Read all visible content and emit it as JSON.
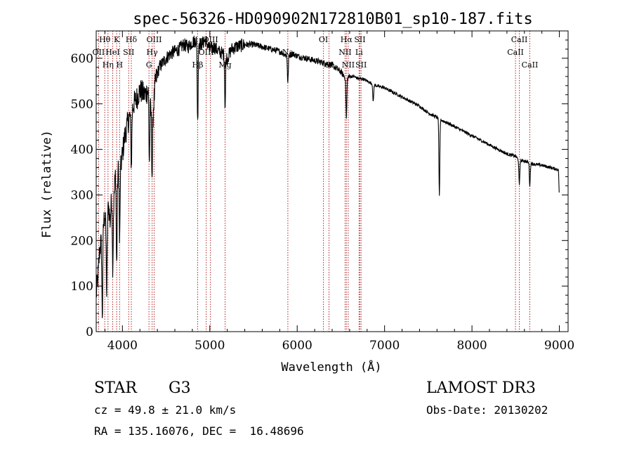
{
  "chart_data": {
    "type": "line",
    "title": "spec-56326-HD090902N172810B01_sp10-187.fits",
    "xlabel": "Wavelength (Å)",
    "ylabel": "Flux (relative)",
    "xlim": [
      3700,
      9100
    ],
    "ylim": [
      0,
      660
    ],
    "x_ticks": [
      4000,
      5000,
      6000,
      7000,
      8000,
      9000
    ],
    "y_ticks": [
      0,
      100,
      200,
      300,
      400,
      500,
      600
    ],
    "grid": false,
    "spectrum": {
      "wavelength": [
        3700,
        3720,
        3740,
        3760,
        3780,
        3800,
        3820,
        3840,
        3860,
        3880,
        3900,
        3920,
        3940,
        3960,
        3980,
        4000,
        4020,
        4050,
        4080,
        4100,
        4130,
        4160,
        4200,
        4250,
        4300,
        4340,
        4380,
        4420,
        4460,
        4500,
        4550,
        4600,
        4650,
        4700,
        4750,
        4800,
        4850,
        4900,
        4950,
        5000,
        5050,
        5100,
        5150,
        5200,
        5250,
        5300,
        5400,
        5500,
        5600,
        5700,
        5800,
        5890,
        5950,
        6000,
        6100,
        6200,
        6300,
        6400,
        6500,
        6560,
        6600,
        6650,
        6700,
        6750,
        6800,
        6900,
        7000,
        7100,
        7200,
        7300,
        7400,
        7500,
        7600,
        7640,
        7700,
        7800,
        7900,
        8000,
        8100,
        8200,
        8300,
        8400,
        8498,
        8542,
        8600,
        8662,
        8700,
        8800,
        8900,
        8990,
        9000
      ],
      "flux": [
        80,
        120,
        180,
        200,
        230,
        260,
        220,
        280,
        240,
        310,
        280,
        350,
        330,
        370,
        360,
        390,
        420,
        450,
        470,
        480,
        500,
        510,
        530,
        520,
        530,
        460,
        550,
        580,
        590,
        600,
        610,
        615,
        620,
        630,
        625,
        635,
        640,
        630,
        640,
        620,
        625,
        615,
        610,
        600,
        620,
        625,
        630,
        630,
        625,
        620,
        615,
        605,
        610,
        605,
        600,
        595,
        590,
        585,
        570,
        555,
        560,
        560,
        555,
        555,
        550,
        540,
        535,
        525,
        515,
        505,
        495,
        480,
        470,
        465,
        460,
        450,
        440,
        430,
        420,
        410,
        400,
        390,
        385,
        375,
        375,
        370,
        368,
        365,
        360,
        355,
        290
      ],
      "absorption_lines": [
        {
          "wavelength": 3770,
          "depth": 180
        },
        {
          "wavelength": 3820,
          "depth": 140
        },
        {
          "wavelength": 3889,
          "depth": 150
        },
        {
          "wavelength": 3934,
          "depth": 190
        },
        {
          "wavelength": 3968,
          "depth": 170
        },
        {
          "wavelength": 4102,
          "depth": 120
        },
        {
          "wavelength": 4308,
          "depth": 140
        },
        {
          "wavelength": 4340,
          "depth": 120
        },
        {
          "wavelength": 4861,
          "depth": 180
        },
        {
          "wavelength": 5175,
          "depth": 110
        },
        {
          "wavelength": 5893,
          "depth": 60
        },
        {
          "wavelength": 6563,
          "depth": 90
        },
        {
          "wavelength": 6870,
          "depth": 40
        },
        {
          "wavelength": 7627,
          "depth": 170
        },
        {
          "wavelength": 8542,
          "depth": 55
        },
        {
          "wavelength": 8662,
          "depth": 50
        }
      ]
    },
    "line_markers": [
      {
        "label": "Hθ",
        "wavelength": 3798,
        "row": 0
      },
      {
        "label": "OII",
        "wavelength": 3727,
        "row": 1
      },
      {
        "label": "Hη",
        "wavelength": 3835,
        "row": 2
      },
      {
        "label": "K",
        "wavelength": 3934,
        "row": 0
      },
      {
        "label": "HeI",
        "wavelength": 3889,
        "row": 1
      },
      {
        "label": "H",
        "wavelength": 3968,
        "row": 2
      },
      {
        "label": "Hδ",
        "wavelength": 4102,
        "row": 0
      },
      {
        "label": "SII",
        "wavelength": 4072,
        "row": 1
      },
      {
        "label": "OIII",
        "wavelength": 4363,
        "row": 0
      },
      {
        "label": "Hγ",
        "wavelength": 4340,
        "row": 1
      },
      {
        "label": "G",
        "wavelength": 4304,
        "row": 2
      },
      {
        "label": "OIII",
        "wavelength": 5007,
        "row": 0
      },
      {
        "label": "OIII",
        "wavelength": 4959,
        "row": 1
      },
      {
        "label": "Hβ",
        "wavelength": 4861,
        "row": 2
      },
      {
        "label": "Mg",
        "wavelength": 5175,
        "row": 2
      },
      {
        "label": "Na",
        "wavelength": 5893,
        "row": 1
      },
      {
        "label": "OI",
        "wavelength": 6300,
        "row": 0
      },
      {
        "label": "OI",
        "wavelength": 6364,
        "row": 2
      },
      {
        "label": "Hα",
        "wavelength": 6563,
        "row": 0
      },
      {
        "label": "NII",
        "wavelength": 6548,
        "row": 1
      },
      {
        "label": "NII",
        "wavelength": 6584,
        "row": 2
      },
      {
        "label": "SII",
        "wavelength": 6717,
        "row": 0
      },
      {
        "label": "Li",
        "wavelength": 6708,
        "row": 1
      },
      {
        "label": "SII",
        "wavelength": 6731,
        "row": 2
      },
      {
        "label": "CaII",
        "wavelength": 8542,
        "row": 0
      },
      {
        "label": "CaII",
        "wavelength": 8498,
        "row": 1
      },
      {
        "label": "CaII",
        "wavelength": 8662,
        "row": 2
      }
    ]
  },
  "info": {
    "object_class": "STAR",
    "subclass": "G3",
    "survey": "LAMOST DR3",
    "cz": "cz = 49.8 ± 21.0 km/s",
    "obs_date": "Obs-Date: 20130202",
    "radec": "RA = 135.16076, DEC =  16.48696"
  },
  "colors": {
    "spectrum": "#000000",
    "marker": "#b22222",
    "axis": "#000000"
  }
}
